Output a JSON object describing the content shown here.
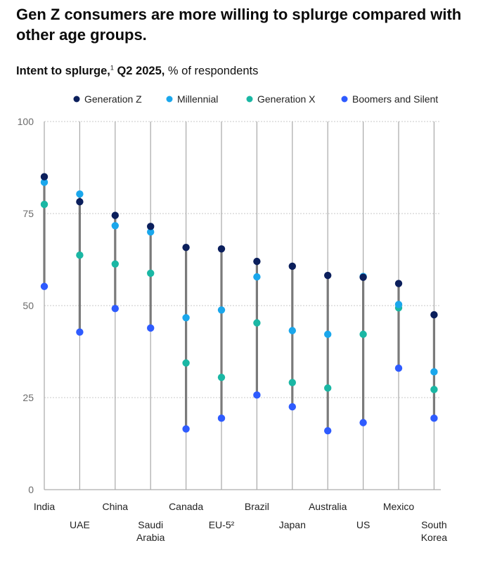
{
  "title": "Gen Z consumers are more willing to splurge compared with other age groups.",
  "subtitle": {
    "bold": "Intent to splurge,",
    "footnote": "1",
    "bold_tail": " Q2 2025,",
    "rest": " % of respondents"
  },
  "colors": {
    "Generation Z": "#0b1f5c",
    "Millennial": "#1aa7ec",
    "Generation X": "#1ab7a4",
    "Boomers and Silent": "#2e5bff",
    "range_line": "#7a7a7a",
    "grid": "#c8c8c8"
  },
  "chart_data": {
    "type": "scatter",
    "subtype": "dot range plot",
    "title": "Gen Z consumers are more willing to splurge compared with other age groups.",
    "ylabel": "% of respondents",
    "ylim": [
      0,
      100
    ],
    "yticks": [
      0,
      25,
      50,
      75,
      100
    ],
    "grid": true,
    "legend_position": "top",
    "categories": [
      [
        "India"
      ],
      [
        "UAE"
      ],
      [
        "China"
      ],
      [
        "Saudi",
        "Arabia"
      ],
      [
        "Canada"
      ],
      [
        "EU-5²"
      ],
      [
        "Brazil"
      ],
      [
        "Japan"
      ],
      [
        "Australia"
      ],
      [
        "US"
      ],
      [
        "Mexico"
      ],
      [
        "South",
        "Korea"
      ]
    ],
    "series": [
      {
        "name": "Generation Z",
        "values": [
          85,
          78.2,
          74.5,
          71.5,
          65.8,
          65.4,
          62,
          60.7,
          58.2,
          57.7,
          56,
          47.5
        ]
      },
      {
        "name": "Millennial",
        "values": [
          83.5,
          80.3,
          71.7,
          70,
          46.7,
          48.8,
          57.8,
          43.2,
          42.2,
          57.9,
          50.3,
          32
        ]
      },
      {
        "name": "Generation X",
        "values": [
          77.5,
          63.7,
          61.3,
          58.8,
          34.4,
          30.5,
          45.3,
          29.1,
          27.6,
          42.2,
          49.4,
          27.2
        ]
      },
      {
        "name": "Boomers and Silent",
        "values": [
          55.2,
          42.8,
          49.2,
          43.9,
          16.5,
          19.4,
          25.7,
          22.5,
          16,
          18.2,
          33,
          19.4
        ]
      }
    ]
  }
}
